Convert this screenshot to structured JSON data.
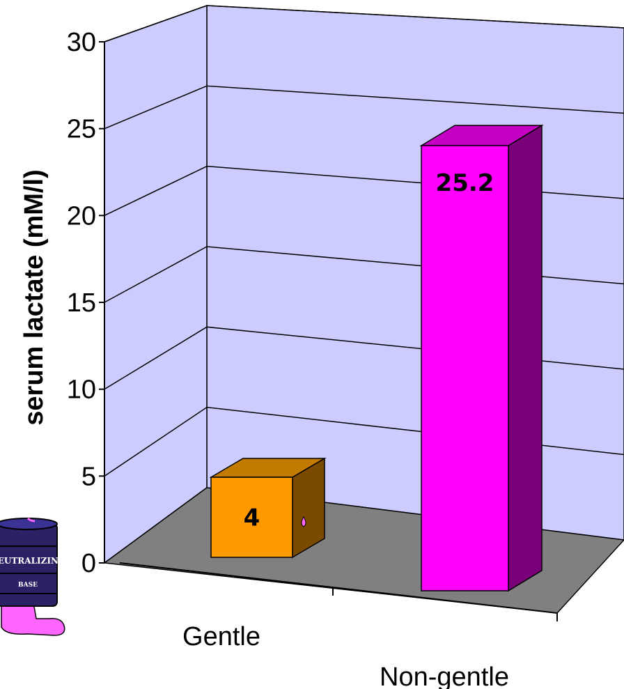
{
  "chart_data": {
    "type": "bar",
    "categories": [
      "Gentle",
      "Non-gentle"
    ],
    "values": [
      4,
      25.2
    ],
    "data_labels": [
      "4",
      "25.2"
    ],
    "ylabel": "serum lactate (mM/l)",
    "ylim": [
      0,
      30
    ],
    "yticks": [
      "0",
      "5",
      "10",
      "15",
      "20",
      "25",
      "30"
    ],
    "grid": true,
    "bar_colors": [
      "#ff9900",
      "#ff00ff"
    ],
    "wall_color": "#ccccff",
    "floor_color": "#808080"
  },
  "decoration": {
    "barrel_text_1": "NEUTRALIZING",
    "barrel_text_2": "BASE",
    "barrel_color": "#2b2266",
    "spill_color": "#ff66ff"
  }
}
